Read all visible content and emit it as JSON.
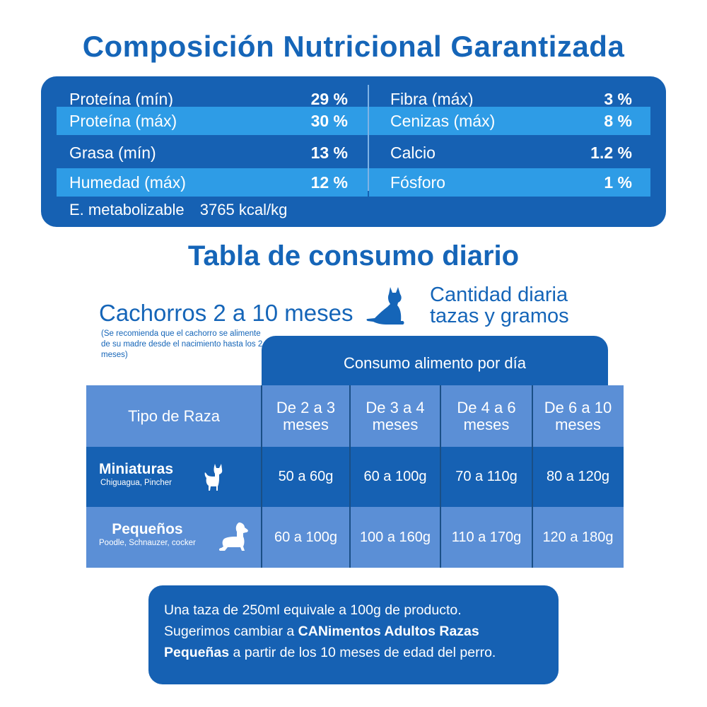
{
  "nutrition": {
    "title": "Composición Nutricional Garantizada",
    "left": [
      {
        "label": "Proteína (mín)",
        "value": "29 %"
      },
      {
        "label": "Proteína (máx)",
        "value": "30 %"
      },
      {
        "label": "Grasa (mín)",
        "value": "13 %"
      },
      {
        "label": "Humedad (máx)",
        "value": "12 %"
      }
    ],
    "right": [
      {
        "label": "Fibra (máx)",
        "value": "3 %"
      },
      {
        "label": "Cenizas (máx)",
        "value": "8 %"
      },
      {
        "label": "Calcio",
        "value": "1.2 %"
      },
      {
        "label": "Fósforo",
        "value": "1 %"
      }
    ],
    "energy_label": "E. metabolizable",
    "energy_value": "3765 kcal/kg"
  },
  "consumption": {
    "title": "Tabla de consumo diario",
    "puppy_title": "Cachorros 2 a 10 meses",
    "puppy_note": "(Se recomienda que el cachorro se alimente de su madre desde el nacimiento hasta los 2 meses)",
    "quantity_label_1": "Cantidad diaria",
    "quantity_label_2": "tazas y gramos",
    "tab_label": "Consumo alimento por día",
    "header": {
      "type": "Tipo de Raza",
      "ages": [
        {
          "l1": "De 2 a 3",
          "l2": "meses"
        },
        {
          "l1": "De 3 a 4",
          "l2": "meses"
        },
        {
          "l1": "De 4 a 6",
          "l2": "meses"
        },
        {
          "l1": "De 6 a 10",
          "l2": "meses"
        }
      ]
    },
    "rows": [
      {
        "name": "Miniaturas",
        "sub": "Chiguagua, Pincher",
        "values": [
          "50 a 60g",
          "60 a 100g",
          "70 a 110g",
          "80 a 120g"
        ]
      },
      {
        "name": "Pequeños",
        "sub": "Poodle, Schnauzer, cocker",
        "values": [
          "60 a 100g",
          "100 a 160g",
          "110 a 170g",
          "120 a 180g"
        ]
      }
    ]
  },
  "note": {
    "line1": "Una taza de 250ml equivale a 100g de producto.",
    "line2_pre": "Sugerimos cambiar a ",
    "line2_bold": "CANimentos Adultos Razas",
    "line3_bold": "Pequeñas",
    "line3_post": " a partir de los 10 meses de edad del perro."
  },
  "colors": {
    "primary": "#1661b3",
    "light_band": "#2e9ce6",
    "table_light": "#5b8fd6",
    "title": "#1565b8"
  },
  "icons": [
    "sitting-puppy-icon",
    "chihuahua-icon",
    "poodle-icon"
  ]
}
